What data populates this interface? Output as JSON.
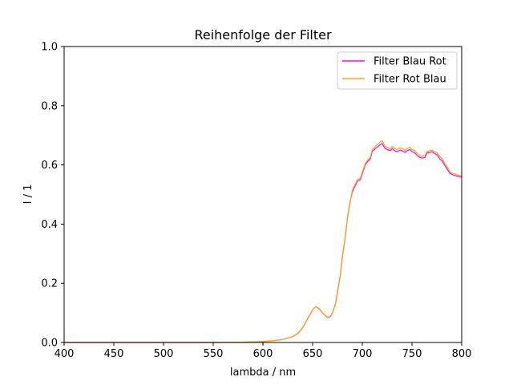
{
  "chart_data": {
    "type": "line",
    "title": "Reihenfolge der Filter",
    "xlabel": "lambda / nm",
    "ylabel": "I / 1",
    "xlim": [
      400,
      800
    ],
    "ylim": [
      0,
      1.0
    ],
    "xticks": [
      400,
      450,
      500,
      550,
      600,
      650,
      700,
      750,
      800
    ],
    "xtick_labels": [
      "400",
      "450",
      "500",
      "550",
      "600",
      "650",
      "700",
      "750",
      "800"
    ],
    "yticks": [
      0,
      0.2,
      0.4,
      0.6,
      0.8,
      1.0
    ],
    "ytick_labels": [
      "0.0",
      "0.2",
      "0.4",
      "0.6",
      "0.8",
      "1.0"
    ],
    "grid": false,
    "legend_position": "top-right",
    "series": [
      {
        "name": "Filter Blau Rot",
        "color": "#ff00ff",
        "x": [
          400,
          450,
          500,
          550,
          580,
          600,
          610,
          620,
          630,
          635,
          640,
          645,
          650,
          653,
          655,
          657,
          660,
          663,
          665,
          668,
          670,
          673,
          675,
          678,
          680,
          683,
          685,
          688,
          690,
          693,
          695,
          698,
          700,
          703,
          705,
          708,
          710,
          713,
          715,
          718,
          720,
          723,
          725,
          728,
          730,
          733,
          735,
          738,
          740,
          743,
          745,
          748,
          750,
          753,
          755,
          758,
          760,
          763,
          765,
          768,
          770,
          773,
          775,
          778,
          780,
          783,
          785,
          788,
          790,
          793,
          795,
          798,
          800
        ],
        "y": [
          0.0,
          0.0,
          0.0,
          0.0,
          0.001,
          0.003,
          0.006,
          0.01,
          0.02,
          0.03,
          0.05,
          0.08,
          0.11,
          0.12,
          0.118,
          0.112,
          0.1,
          0.09,
          0.085,
          0.088,
          0.1,
          0.13,
          0.17,
          0.23,
          0.29,
          0.36,
          0.42,
          0.48,
          0.51,
          0.53,
          0.545,
          0.55,
          0.57,
          0.6,
          0.61,
          0.62,
          0.645,
          0.655,
          0.66,
          0.668,
          0.672,
          0.655,
          0.652,
          0.648,
          0.655,
          0.647,
          0.645,
          0.65,
          0.648,
          0.642,
          0.648,
          0.652,
          0.645,
          0.64,
          0.632,
          0.625,
          0.623,
          0.625,
          0.64,
          0.642,
          0.645,
          0.638,
          0.635,
          0.62,
          0.615,
          0.598,
          0.588,
          0.572,
          0.568,
          0.565,
          0.562,
          0.56,
          0.558
        ]
      },
      {
        "name": "Filter Rot Blau",
        "color": "#ffa500",
        "x": [
          400,
          450,
          500,
          550,
          580,
          600,
          610,
          620,
          630,
          635,
          640,
          645,
          650,
          653,
          655,
          657,
          660,
          663,
          665,
          668,
          670,
          673,
          675,
          678,
          680,
          683,
          685,
          688,
          690,
          693,
          695,
          698,
          700,
          703,
          705,
          708,
          710,
          713,
          715,
          718,
          720,
          723,
          725,
          728,
          730,
          733,
          735,
          738,
          740,
          743,
          745,
          748,
          750,
          753,
          755,
          758,
          760,
          763,
          765,
          768,
          770,
          773,
          775,
          778,
          780,
          783,
          785,
          788,
          790,
          793,
          795,
          798,
          800
        ],
        "y": [
          0.0,
          0.0,
          0.0,
          0.0,
          0.001,
          0.003,
          0.006,
          0.01,
          0.02,
          0.03,
          0.05,
          0.08,
          0.11,
          0.12,
          0.119,
          0.113,
          0.1,
          0.09,
          0.086,
          0.089,
          0.1,
          0.13,
          0.17,
          0.23,
          0.29,
          0.36,
          0.42,
          0.48,
          0.515,
          0.535,
          0.55,
          0.555,
          0.575,
          0.605,
          0.615,
          0.625,
          0.652,
          0.662,
          0.668,
          0.678,
          0.682,
          0.662,
          0.66,
          0.655,
          0.662,
          0.655,
          0.652,
          0.658,
          0.655,
          0.65,
          0.655,
          0.66,
          0.652,
          0.648,
          0.64,
          0.632,
          0.63,
          0.632,
          0.645,
          0.648,
          0.65,
          0.645,
          0.642,
          0.628,
          0.622,
          0.605,
          0.595,
          0.578,
          0.572,
          0.57,
          0.566,
          0.565,
          0.563
        ]
      }
    ]
  }
}
